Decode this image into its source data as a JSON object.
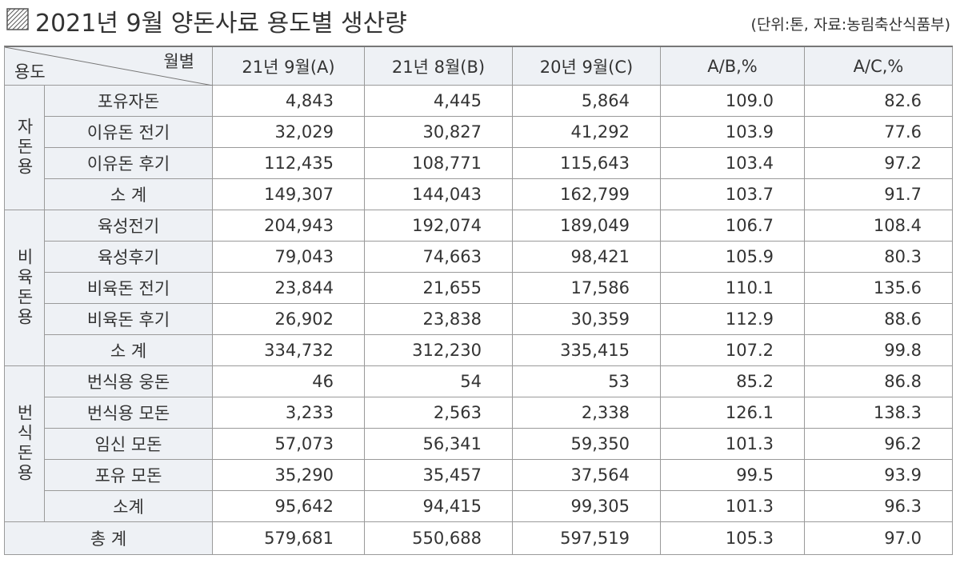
{
  "title": "2021년 9월 양돈사료 용도별 생산량",
  "note": "(단위:톤, 자료:농림축산식품부)",
  "table": {
    "corner_top": "월별",
    "corner_bottom": "용도",
    "columns": [
      "21년 9월(A)",
      "21년 8월(B)",
      "20년 9월(C)",
      "A/B,%",
      "A/C,%"
    ],
    "groups": [
      {
        "label": "자돈용",
        "rows": [
          {
            "name": "포유자돈",
            "cells": [
              "4,843",
              "4,445",
              "5,864",
              "109.0",
              "82.6"
            ]
          },
          {
            "name": "이유돈 전기",
            "cells": [
              "32,029",
              "30,827",
              "41,292",
              "103.9",
              "77.6"
            ]
          },
          {
            "name": "이유돈 후기",
            "cells": [
              "112,435",
              "108,771",
              "115,643",
              "103.4",
              "97.2"
            ]
          },
          {
            "name": "소 계",
            "cells": [
              "149,307",
              "144,043",
              "162,799",
              "103.7",
              "91.7"
            ]
          }
        ]
      },
      {
        "label": "비육돈용",
        "rows": [
          {
            "name": "육성전기",
            "cells": [
              "204,943",
              "192,074",
              "189,049",
              "106.7",
              "108.4"
            ]
          },
          {
            "name": "육성후기",
            "cells": [
              "79,043",
              "74,663",
              "98,421",
              "105.9",
              "80.3"
            ]
          },
          {
            "name": "비육돈 전기",
            "cells": [
              "23,844",
              "21,655",
              "17,586",
              "110.1",
              "135.6"
            ]
          },
          {
            "name": "비육돈 후기",
            "cells": [
              "26,902",
              "23,838",
              "30,359",
              "112.9",
              "88.6"
            ]
          },
          {
            "name": "소 계",
            "cells": [
              "334,732",
              "312,230",
              "335,415",
              "107.2",
              "99.8"
            ]
          }
        ]
      },
      {
        "label": "번식돈용",
        "rows": [
          {
            "name": "번식용 웅돈",
            "cells": [
              "46",
              "54",
              "53",
              "85.2",
              "86.8"
            ]
          },
          {
            "name": "번식용 모돈",
            "cells": [
              "3,233",
              "2,563",
              "2,338",
              "126.1",
              "138.3"
            ]
          },
          {
            "name": "임신 모돈",
            "cells": [
              "57,073",
              "56,341",
              "59,350",
              "101.3",
              "96.2"
            ]
          },
          {
            "name": "포유 모돈",
            "cells": [
              "35,290",
              "35,457",
              "37,564",
              "99.5",
              "93.9"
            ]
          },
          {
            "name": "소계",
            "cells": [
              "95,642",
              "94,415",
              "99,305",
              "101.3",
              "96.3"
            ]
          }
        ]
      }
    ],
    "total": {
      "name": "총 계",
      "cells": [
        "579,681",
        "550,688",
        "597,519",
        "105.3",
        "97.0"
      ]
    }
  }
}
